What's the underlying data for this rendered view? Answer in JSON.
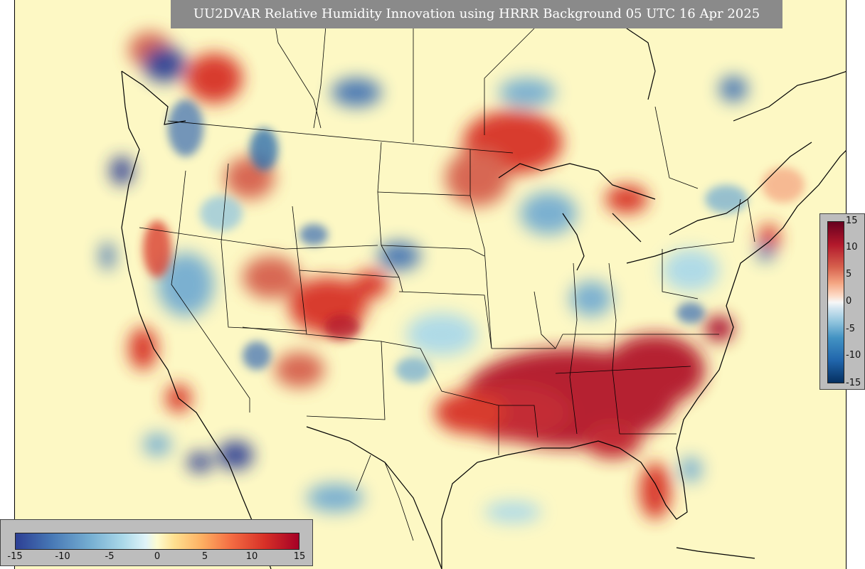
{
  "title": "UU2DVAR Relative Humidity Innovation using HRRR Background 05 UTC 16 Apr 2025",
  "right_colorbar": {
    "ticks": [
      "15",
      "10",
      "5",
      "0",
      "-5",
      "-10",
      "-15"
    ]
  },
  "bottom_colorbar": {
    "ticks": [
      "-15",
      "-10",
      "-5",
      "0",
      "5",
      "10",
      "15"
    ]
  },
  "colors": {
    "background": "#fdf8c4",
    "positive": "#a50026",
    "negative": "#2d3f94",
    "title_bg": "#8a8a8a"
  }
}
